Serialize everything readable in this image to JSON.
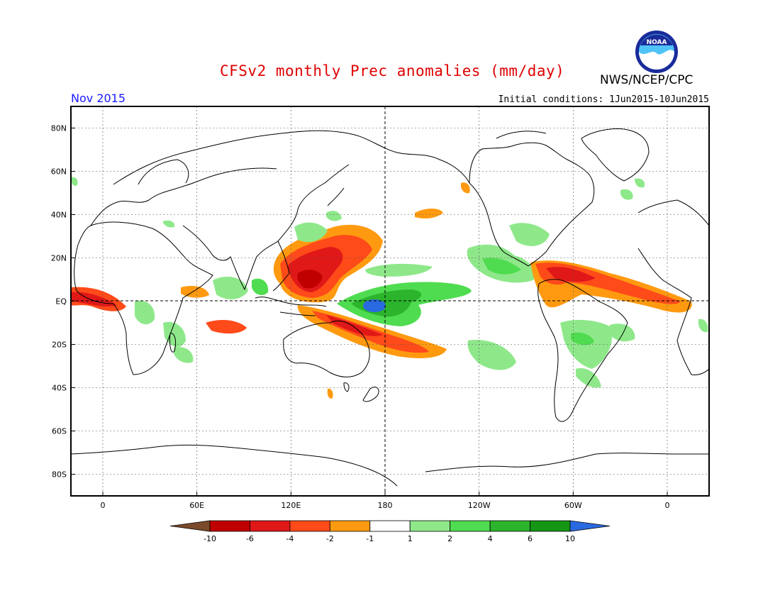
{
  "title": "CFSv2 monthly Prec anomalies (mm/day)",
  "agency": "NWS/NCEP/CPC",
  "logo_text": "NOAA",
  "month": "Nov 2015",
  "initial_conditions": "Initial conditions: 1Jun2015-10Jun2015",
  "lat_labels": [
    "80N",
    "60N",
    "40N",
    "20N",
    "EQ",
    "20S",
    "40S",
    "60S",
    "80S"
  ],
  "lon_labels": [
    "0",
    "60E",
    "120E",
    "180",
    "120W",
    "60W",
    "0"
  ],
  "colorbar": {
    "ticks": [
      "-10",
      "-6",
      "-4",
      "-2",
      "-1",
      "1",
      "2",
      "4",
      "6",
      "10"
    ],
    "colors": [
      "#7a4a2a",
      "#c00000",
      "#e01818",
      "#ff4a1a",
      "#ff9a10",
      "#ffffff",
      "#8ee88a",
      "#50dc50",
      "#2cb42c",
      "#149614",
      "#2a6ae0"
    ]
  },
  "map_colors": {
    "dry_extreme": "#c00000",
    "dry_strong": "#e01818",
    "dry": "#ff4a1a",
    "dry_mild": "#ff9a10",
    "wet_mild": "#8ee88a",
    "wet": "#50dc50",
    "wet_strong": "#2cb42c",
    "wet_extreme": "#2a6ae0"
  }
}
